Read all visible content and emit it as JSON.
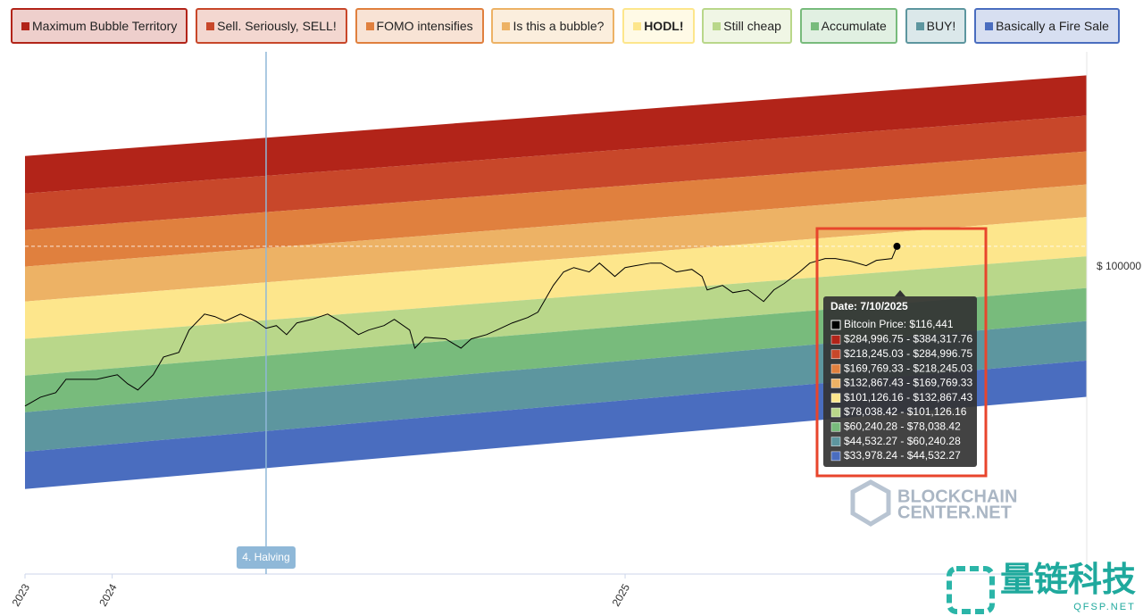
{
  "chart_data": {
    "type": "line",
    "yscale": "log",
    "xlim": [
      2023.83,
      2025.9
    ],
    "ylim": [
      10000,
      500000
    ],
    "xticks": [
      {
        "value": 2023.83,
        "label": "2023"
      },
      {
        "value": 2024,
        "label": "2024"
      },
      {
        "value": 2025,
        "label": "2025"
      }
    ],
    "yticks": [
      {
        "value": 100000,
        "label": "$ 100000"
      }
    ],
    "band_x": [
      2023.83,
      2025.9
    ],
    "series": [
      {
        "name": "Maximum Bubble Territory",
        "color": "#b22419",
        "high": [
          229000,
          419000
        ],
        "low": [
          173000,
          310000
        ]
      },
      {
        "name": "Sell. Seriously, SELL!",
        "color": "#c8472a",
        "high": [
          173000,
          310000
        ],
        "low": [
          131600,
          237000
        ]
      },
      {
        "name": "FOMO intensifies",
        "color": "#e0803e",
        "high": [
          131600,
          237000
        ],
        "low": [
          100000,
          185000
        ]
      },
      {
        "name": "Is this a bubble?",
        "color": "#edb265",
        "high": [
          100000,
          185000
        ],
        "low": [
          77000,
          145000
        ]
      },
      {
        "name": "HODL!",
        "color": "#fde68c",
        "high": [
          77000,
          145000
        ],
        "low": [
          58200,
          108000
        ]
      },
      {
        "name": "Still cheap",
        "color": "#b9d78a",
        "high": [
          58200,
          108000
        ],
        "low": [
          44200,
          85200
        ]
      },
      {
        "name": "Accumulate",
        "color": "#78bb7c",
        "high": [
          44200,
          85200
        ],
        "low": [
          33600,
          66500
        ]
      },
      {
        "name": "BUY!",
        "color": "#5d969f",
        "high": [
          33600,
          66500
        ],
        "low": [
          25000,
          49500
        ]
      },
      {
        "name": "Basically a Fire Sale",
        "color": "#4a6dbf",
        "high": [
          25000,
          49500
        ],
        "low": [
          18900,
          37700
        ]
      }
    ],
    "price": {
      "color": "#000000",
      "x": [
        2023.83,
        2023.86,
        2023.89,
        2023.91,
        2023.94,
        2023.97,
        2024.01,
        2024.03,
        2024.05,
        2024.08,
        2024.1,
        2024.13,
        2024.15,
        2024.18,
        2024.2,
        2024.22,
        2024.25,
        2024.28,
        2024.3,
        2024.32,
        2024.34,
        2024.36,
        2024.39,
        2024.42,
        2024.45,
        2024.48,
        2024.5,
        2024.53,
        2024.55,
        2024.58,
        2024.59,
        2024.61,
        2024.65,
        2024.68,
        2024.7,
        2024.73,
        2024.75,
        2024.78,
        2024.81,
        2024.83,
        2024.86,
        2024.88,
        2024.9,
        2024.93,
        2024.95,
        2024.98,
        2025.0,
        2025.02,
        2025.05,
        2025.07,
        2025.1,
        2025.13,
        2025.15,
        2025.16,
        2025.19,
        2025.21,
        2025.24,
        2025.27,
        2025.29,
        2025.31,
        2025.34,
        2025.36,
        2025.39,
        2025.41,
        2025.44,
        2025.47,
        2025.49,
        2025.52,
        2025.53
      ],
      "values": [
        35200,
        37600,
        38900,
        43000,
        43000,
        43000,
        44500,
        41600,
        39700,
        44500,
        50800,
        52600,
        62200,
        70100,
        68800,
        66500,
        70100,
        66500,
        63000,
        64300,
        60100,
        65600,
        67400,
        70100,
        65600,
        60100,
        62200,
        64300,
        67400,
        62200,
        54300,
        58900,
        58200,
        54300,
        58200,
        60100,
        62200,
        65600,
        68300,
        71100,
        86900,
        96100,
        99300,
        96100,
        102700,
        92900,
        99300,
        100700,
        102700,
        102700,
        96100,
        98000,
        92900,
        84000,
        86900,
        82300,
        84000,
        77000,
        84000,
        88100,
        96100,
        102700,
        106200,
        106200,
        104100,
        100700,
        104800,
        106200,
        116441
      ]
    },
    "annotation": {
      "x": 2024.3,
      "label": "4. Halving"
    },
    "tooltip": {
      "title": "Date: 7/10/2025",
      "price": "Bitcoin Price: $116,441",
      "rows": [
        "$284,996.75 - $384,317.76",
        "$218,245.03 - $284,996.75",
        "$169,769.33 - $218,245.03",
        "$132,867.43 - $169,769.33",
        "$101,126.16 - $132,867.43",
        "$78,038.42 - $101,126.16",
        "$60,240.28 - $78,038.42",
        "$44,532.27 - $60,240.28",
        "$33,978.24 - $44,532.27"
      ]
    },
    "watermarks": [
      "BLOCKCHAIN",
      "CENTER.NET",
      "量链科技",
      "QFSP.NET"
    ]
  }
}
